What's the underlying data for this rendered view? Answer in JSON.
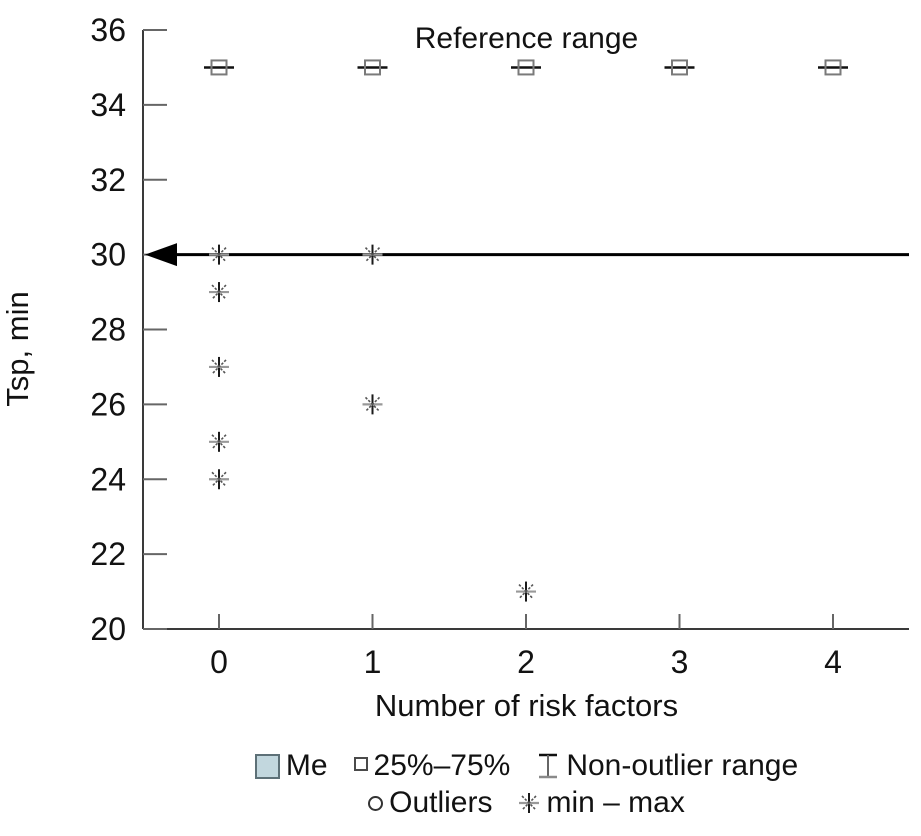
{
  "chart_data": {
    "type": "box",
    "title": "Reference range",
    "xlabel": "Number of risk factors",
    "ylabel": "Tsp, min",
    "x_categories": [
      "0",
      "1",
      "2",
      "3",
      "4"
    ],
    "ylim": [
      20,
      36
    ],
    "yticks": [
      36,
      34,
      32,
      30,
      28,
      26,
      24,
      22,
      20
    ],
    "grid": false,
    "reference_markers": {
      "description": "collapsed 25%-75% box with median line at each category",
      "y_value": 35,
      "x_indices": [
        0,
        1,
        2,
        3,
        4
      ]
    },
    "minmax_points": [
      {
        "x_index": 0,
        "values": [
          30,
          29,
          27,
          25,
          24
        ]
      },
      {
        "x_index": 1,
        "values": [
          30,
          26
        ]
      },
      {
        "x_index": 2,
        "values": [
          21
        ]
      }
    ],
    "arrow_line": {
      "y_value": 30,
      "direction": "left"
    },
    "legend_position": "bottom-center"
  },
  "labels": {
    "title": "Reference range",
    "xlabel": "Number of risk factors",
    "ylabel": "Tsp, min"
  },
  "legend": {
    "me": "Me",
    "box": "25%–75%",
    "nonoutlier": "Non-outlier range",
    "outliers": "Outliers",
    "minmax": "min – max"
  },
  "colors": {
    "me_fill": "#c2d7de",
    "me_border": "#5d7077",
    "axis": "#3a3a3a",
    "tick": "#666666",
    "marker_square_border": "#7a7a7a",
    "median_line": "#111111",
    "asterisk_main": "#1a1a1a",
    "asterisk_horizontal": "#999999",
    "asterisk_diagonal": "#555555",
    "arrow": "#000000",
    "text": "#121212"
  }
}
